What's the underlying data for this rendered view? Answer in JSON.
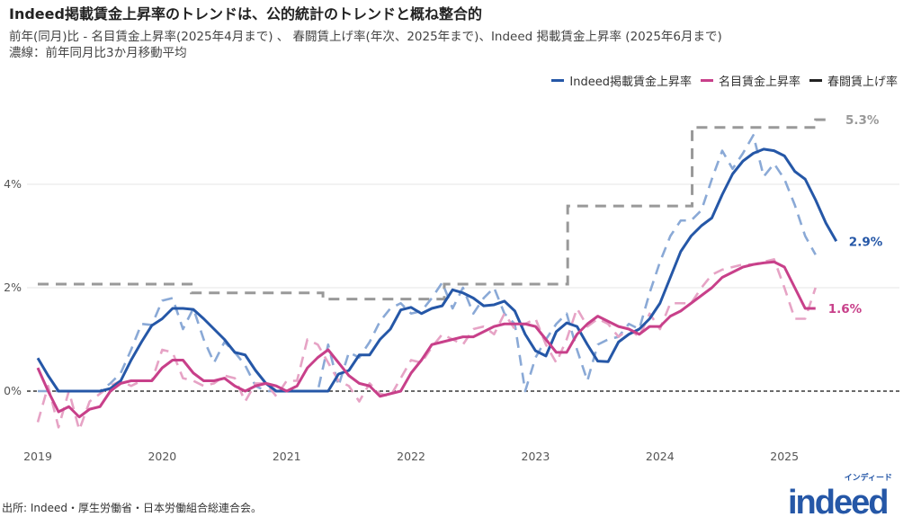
{
  "title": "Indeed掲載賃金上昇率のトレンドは、公的統計のトレンドと概ね整合的",
  "subtitle_line1": "前年(同月)比 - 名目賃金上昇率(2025年4月まで) 、 春闘賃上げ率(年次、2025年まで)、Indeed 掲載賃金上昇率 (2025年6月まで)",
  "subtitle_line2": "濃線：前年同月比3か月移動平均",
  "source": "出所: Indeed・厚生労働省・日本労働組合総連合会。",
  "logo": {
    "word": "indeed",
    "kana": "インディード"
  },
  "legend": [
    {
      "label": "Indeed掲載賃金上昇率",
      "color": "#2557a7"
    },
    {
      "label": "名目賃金上昇率",
      "color": "#c8408a"
    },
    {
      "label": "春闘賃上げ率",
      "color": "#222222"
    }
  ],
  "chart_data": {
    "type": "line",
    "x_start": "2019-01",
    "x_unit": "month",
    "x_ticks": [
      "2019",
      "2020",
      "2021",
      "2022",
      "2023",
      "2024",
      "2025"
    ],
    "y_ticks": [
      "0%",
      "2%",
      "4%"
    ],
    "ylim": [
      -1,
      5.6
    ],
    "grid": "horizontal",
    "legend_position": "top-right",
    "series": [
      {
        "name": "Indeed掲載賃金上昇率",
        "kind": "3か月移動平均",
        "color": "#2557a7",
        "end_label": "2.9%",
        "values": [
          0.64,
          0.3,
          0,
          0,
          0,
          0,
          0,
          0.05,
          0.2,
          0.6,
          0.95,
          1.27,
          1.4,
          1.6,
          1.6,
          1.58,
          1.4,
          1.2,
          1.0,
          0.75,
          0.7,
          0.4,
          0.15,
          0,
          0,
          0,
          0,
          0,
          0,
          0.33,
          0.4,
          0.7,
          0.7,
          1.0,
          1.2,
          1.57,
          1.62,
          1.5,
          1.6,
          1.65,
          1.96,
          1.9,
          1.8,
          1.65,
          1.67,
          1.74,
          1.55,
          1.1,
          0.78,
          0.68,
          1.15,
          1.32,
          1.25,
          0.9,
          0.58,
          0.57,
          0.95,
          1.1,
          1.2,
          1.4,
          1.7,
          2.2,
          2.7,
          3.0,
          3.2,
          3.35,
          3.8,
          4.2,
          4.45,
          4.6,
          4.68,
          4.65,
          4.55,
          4.25,
          4.1,
          3.7,
          3.25,
          2.9
        ]
      },
      {
        "name": "Indeed掲載賃金上昇率",
        "kind": "前年同月比",
        "color": "#8aa9d6",
        "values": [
          0,
          0,
          0,
          0,
          0,
          0,
          0,
          0.15,
          0.35,
          0.8,
          1.3,
          1.28,
          1.75,
          1.8,
          1.2,
          1.6,
          1.0,
          0.55,
          0.95,
          0.75,
          0.5,
          0.1,
          0,
          0,
          0,
          0,
          0,
          0,
          0.9,
          0.1,
          0.75,
          0.65,
          0.95,
          1.35,
          1.6,
          1.7,
          1.5,
          1.55,
          1.8,
          2.1,
          1.6,
          2.0,
          1.5,
          1.8,
          2.0,
          1.5,
          1.3,
          0,
          0.65,
          1.0,
          1.3,
          1.5,
          0.8,
          0.2,
          0.9,
          1.0,
          1.05,
          1.3,
          1.2,
          1.9,
          2.5,
          3.0,
          3.3,
          3.3,
          3.5,
          4.1,
          4.65,
          4.3,
          4.6,
          4.95,
          4.15,
          4.4,
          4.1,
          3.6,
          3.0,
          2.64
        ]
      },
      {
        "name": "名目賃金上昇率",
        "kind": "3か月移動平均",
        "color": "#c8408a",
        "end_label": "1.6%",
        "values": [
          0.45,
          0,
          -0.4,
          -0.3,
          -0.5,
          -0.35,
          -0.3,
          0,
          0.15,
          0.2,
          0.2,
          0.2,
          0.45,
          0.6,
          0.6,
          0.35,
          0.2,
          0.2,
          0.25,
          0.1,
          0,
          0.1,
          0.15,
          0.1,
          0,
          0.1,
          0.45,
          0.65,
          0.8,
          0.55,
          0.3,
          0.15,
          0.1,
          -0.1,
          -0.05,
          0,
          0.35,
          0.6,
          0.9,
          0.95,
          1.0,
          1.05,
          1.05,
          1.15,
          1.25,
          1.3,
          1.3,
          1.3,
          1.25,
          1.0,
          0.75,
          0.75,
          1.1,
          1.3,
          1.45,
          1.35,
          1.25,
          1.2,
          1.1,
          1.25,
          1.25,
          1.45,
          1.55,
          1.7,
          1.85,
          2.0,
          2.2,
          2.3,
          2.4,
          2.45,
          2.48,
          2.5,
          2.4,
          2.0,
          1.6,
          1.6
        ]
      },
      {
        "name": "名目賃金上昇率",
        "kind": "前年同月比",
        "color": "#e6a3c5",
        "values": [
          -0.6,
          0.1,
          -0.7,
          0,
          -0.75,
          -0.2,
          -0.05,
          0.1,
          0.2,
          0.1,
          0.2,
          0.2,
          0.8,
          0.75,
          0.25,
          0.2,
          0.1,
          0.15,
          0.3,
          0.25,
          -0.2,
          0.15,
          0.15,
          -0.1,
          0.2,
          0.2,
          1.0,
          0.9,
          0.55,
          0.2,
          0.1,
          -0.2,
          0.15,
          -0.05,
          -0.1,
          0.25,
          0.6,
          0.55,
          0.85,
          1.1,
          1.0,
          0.9,
          1.2,
          1.25,
          1.1,
          1.5,
          1.2,
          1.3,
          1.4,
          0.9,
          0.55,
          1.0,
          1.6,
          1.25,
          1.4,
          1.3,
          1.05,
          1.2,
          1.05,
          1.5,
          1.2,
          1.7,
          1.7,
          1.7,
          2.0,
          2.25,
          2.35,
          2.4,
          2.45,
          2.45,
          2.5,
          2.55,
          2.0,
          1.4,
          1.4,
          2.0
        ]
      }
    ],
    "shunto": {
      "name": "春闘賃上げ率",
      "color": "#999999",
      "end_label": "5.3%",
      "steps": [
        {
          "from_month": 0,
          "value": 2.07
        },
        {
          "from_month": 14.8,
          "value": 1.9
        },
        {
          "from_month": 27.5,
          "value": 1.78
        },
        {
          "from_month": 39.2,
          "value": 2.07
        },
        {
          "from_month": 51.1,
          "value": 3.58
        },
        {
          "from_month": 63.1,
          "value": 5.1
        },
        {
          "from_month": 75.0,
          "value": 5.25
        }
      ],
      "end_month": 76.0
    }
  }
}
